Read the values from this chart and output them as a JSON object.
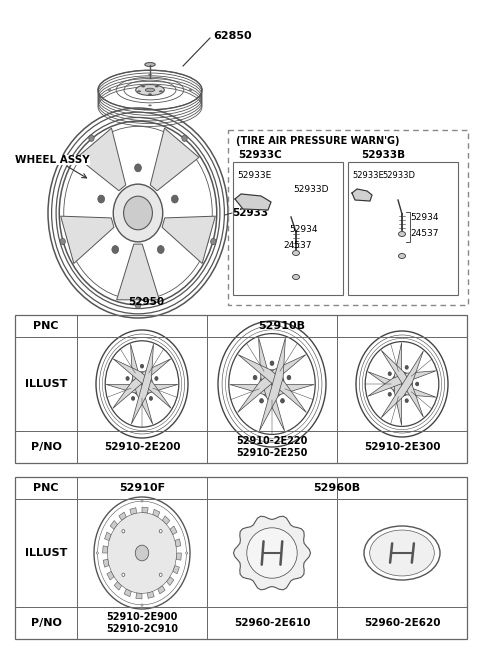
{
  "bg_color": "#ffffff",
  "part_62850": "62850",
  "part_52933": "52933",
  "part_52950": "52950",
  "part_52933C": "52933C",
  "part_52933B": "52933B",
  "part_52933E": "52933E",
  "part_52933D": "52933D",
  "part_52934": "52934",
  "part_24537": "24537",
  "tire_warn_label": "(TIRE AIR PRESSURE WARN'G)",
  "wheel_assy_label": "WHEEL ASSY",
  "t1_pnc": "PNC",
  "t1_code": "52910B",
  "t1_illust": "ILLUST",
  "t1_pno": "P/NO",
  "t1_pno1": "52910-2E200",
  "t1_pno2": "52910-2E220\n52910-2E250",
  "t1_pno3": "52910-2E300",
  "t2_pnc": "PNC",
  "t2_code1": "52910F",
  "t2_code2": "52960B",
  "t2_illust": "ILLUST",
  "t2_pno": "P/NO",
  "t2_pno1": "52910-2E900\n52910-2C910",
  "t2_pno2": "52960-2E610",
  "t2_pno3": "52960-2E620",
  "lc": "#333333",
  "tc": "#000000",
  "tb": "#666666"
}
